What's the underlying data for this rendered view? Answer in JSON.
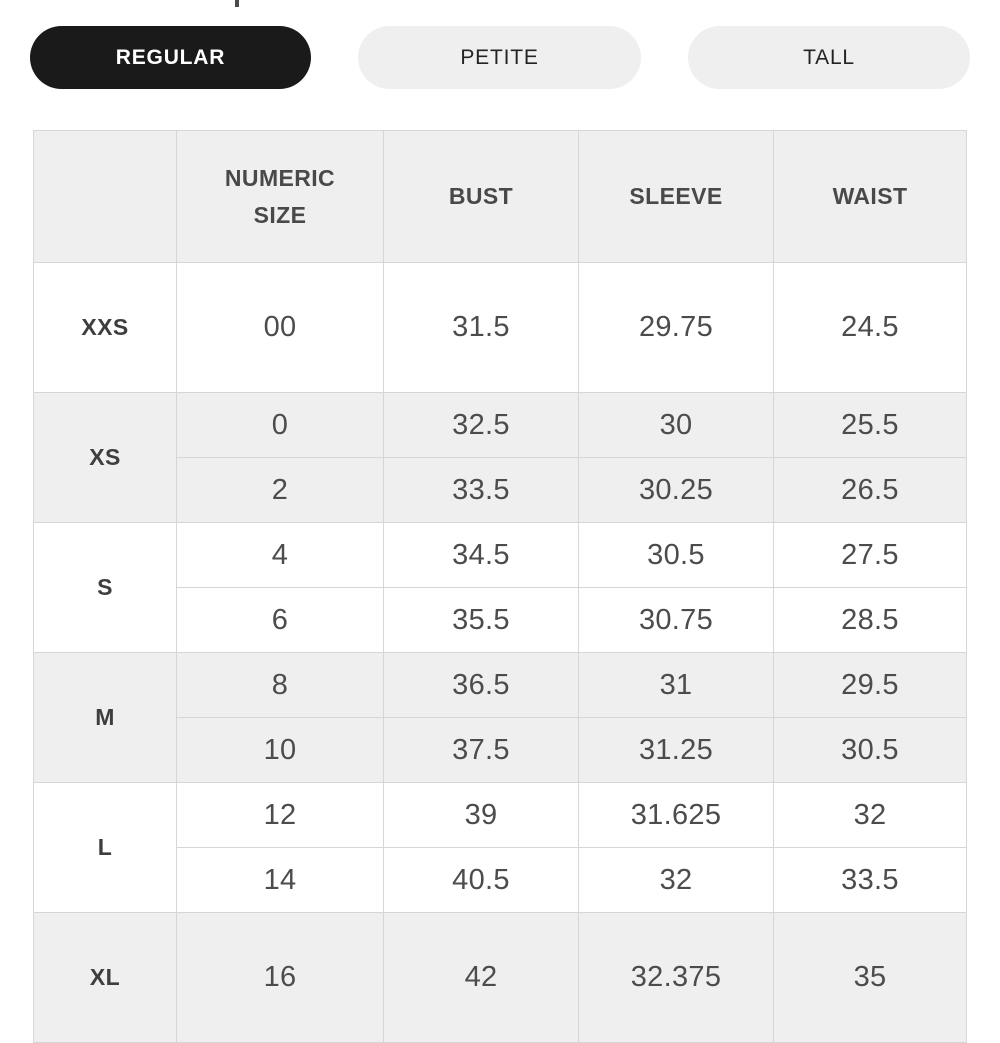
{
  "tabs": [
    {
      "label": "REGULAR",
      "selected": true
    },
    {
      "label": "PETITE",
      "selected": false
    },
    {
      "label": "TALL",
      "selected": false
    }
  ],
  "table": {
    "headers": {
      "size": "",
      "numeric_size": "NUMERIC SIZE",
      "bust": "BUST",
      "sleeve": "SLEEVE",
      "waist": "WAIST"
    },
    "groups": [
      {
        "size": "XXS",
        "rows": [
          [
            "00",
            "31.5",
            "29.75",
            "24.5"
          ]
        ]
      },
      {
        "size": "XS",
        "rows": [
          [
            "0",
            "32.5",
            "30",
            "25.5"
          ],
          [
            "2",
            "33.5",
            "30.25",
            "26.5"
          ]
        ]
      },
      {
        "size": "S",
        "rows": [
          [
            "4",
            "34.5",
            "30.5",
            "27.5"
          ],
          [
            "6",
            "35.5",
            "30.75",
            "28.5"
          ]
        ]
      },
      {
        "size": "M",
        "rows": [
          [
            "8",
            "36.5",
            "31",
            "29.5"
          ],
          [
            "10",
            "37.5",
            "31.25",
            "30.5"
          ]
        ]
      },
      {
        "size": "L",
        "rows": [
          [
            "12",
            "39",
            "31.625",
            "32"
          ],
          [
            "14",
            "40.5",
            "32",
            "33.5"
          ]
        ]
      },
      {
        "size": "XL",
        "rows": [
          [
            "16",
            "42",
            "32.375",
            "35"
          ]
        ]
      }
    ]
  },
  "colors": {
    "selected_tab_bg": "#1b1a1a",
    "selected_tab_text": "#ffffff",
    "unselected_tab_bg": "#f0eff0",
    "table_stripe_bg": "#f0eff0",
    "table_border": "#d7d5d6",
    "label_text": "#3f3e3f",
    "value_text": "#4d4c4d",
    "page_bg": "#ffffff"
  }
}
